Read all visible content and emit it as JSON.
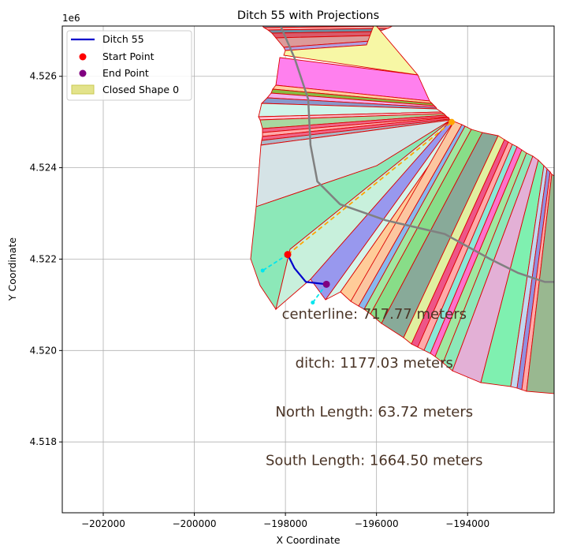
{
  "chart_data": {
    "type": "map-plot",
    "title": "Ditch 55 with Projections",
    "xlabel": "X Coordinate",
    "ylabel": "Y Coordinate",
    "y_offset_label": "1e6",
    "xlim": [
      -202900,
      -192100
    ],
    "ylim": [
      4516450,
      4527100
    ],
    "xticks": [
      -202000,
      -200000,
      -198000,
      -196000,
      -194000
    ],
    "xtick_labels": [
      "−202000",
      "−200000",
      "−198000",
      "−196000",
      "−194000"
    ],
    "yticks": [
      4518000,
      4520000,
      4522000,
      4524000,
      4526000
    ],
    "ytick_labels": [
      "4.518",
      "4.520",
      "4.522",
      "4.524",
      "4.526"
    ],
    "grid": true,
    "legend_position": "top-left",
    "legend": [
      {
        "label": "Ditch 55",
        "kind": "line",
        "color": "#0000cc"
      },
      {
        "label": "Start Point",
        "kind": "dot",
        "color": "#ff0000"
      },
      {
        "label": "End Point",
        "kind": "dot",
        "color": "#800080"
      },
      {
        "label": "Closed Shape 0",
        "kind": "patch",
        "color": "#dcdc6e"
      }
    ],
    "ditch": [
      [
        -197950,
        4522100
      ],
      [
        -197800,
        4521800
      ],
      [
        -197550,
        4521500
      ],
      [
        -197100,
        4521450
      ]
    ],
    "start_point": [
      -197950,
      4522100
    ],
    "end_point": [
      -197100,
      4521450
    ],
    "centerline_endpoint": [
      -194350,
      4525000
    ],
    "north_projection": [
      [
        -197950,
        4522100
      ],
      [
        -198500,
        4521750
      ]
    ],
    "south_projection": [
      [
        -197100,
        4521450
      ],
      [
        -197400,
        4521050
      ]
    ],
    "road": [
      [
        -198300,
        4528000
      ],
      [
        -198150,
        4527200
      ],
      [
        -197800,
        4526400
      ],
      [
        -197500,
        4525500
      ],
      [
        -197450,
        4524500
      ],
      [
        -197300,
        4523700
      ],
      [
        -196800,
        4523200
      ],
      [
        -195800,
        4522850
      ],
      [
        -194500,
        4522550
      ],
      [
        -193500,
        4522000
      ],
      [
        -192900,
        4521700
      ],
      [
        -192300,
        4521500
      ],
      [
        -192000,
        4521500
      ]
    ],
    "annotations": [
      {
        "text": "centerline: 717.77 meters",
        "x": -196050,
        "y": 4520700
      },
      {
        "text": "ditch: 1177.03 meters",
        "x": -196050,
        "y": 4519630
      },
      {
        "text": "North Length: 63.72 meters",
        "x": -196050,
        "y": 4518560
      },
      {
        "text": "South Length: 1664.50 meters",
        "x": -196050,
        "y": 4517490
      }
    ]
  }
}
